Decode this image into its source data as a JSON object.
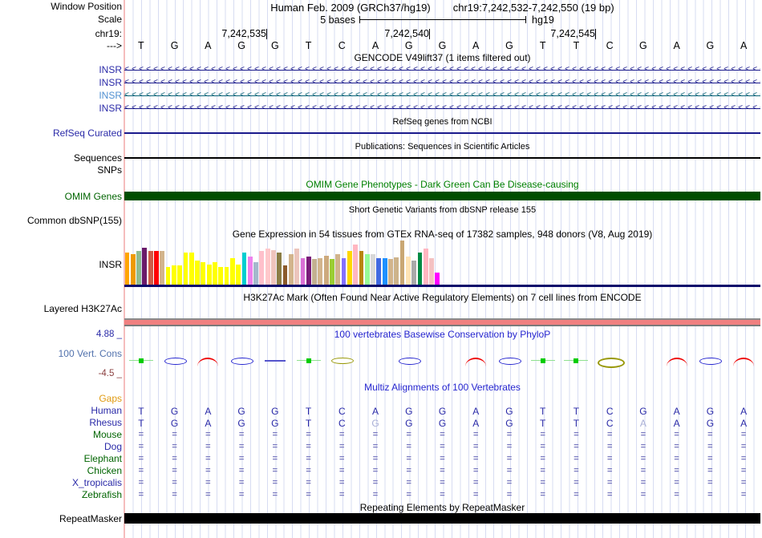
{
  "colors": {
    "navy": "#1a1a8c",
    "label_blue": "#2a2aa8",
    "title_blue": "#2525cf",
    "green_title": "#008000",
    "green_label": "#006400",
    "omim_bar": "#004d00",
    "salmon": "#f08080",
    "gray_edge": "#7a7a7a",
    "orange": "#e09a10",
    "eq": "#7b7bc0",
    "dim_letter": "#a9afd6",
    "teal_line": "#0c6478",
    "light_blue_label": "#4f8fd1",
    "maroon": "#8b4040",
    "cons_label": "#5272ad",
    "black": "#000000"
  },
  "header": {
    "window_position_label": "Window Position",
    "assembly": "Human Feb. 2009 (GRCh37/hg19)",
    "position": "chr19:7,242,532-7,242,550 (19 bp)",
    "scale_label": "Scale",
    "scale_bases": "5 bases",
    "scale_genome": "hg19",
    "chrom_label": "chr19:",
    "ruler_ticks": [
      "7,242,535",
      "7,242,540",
      "7,242,545"
    ],
    "strand_arrow": "--->",
    "sequence": [
      "T",
      "G",
      "A",
      "G",
      "G",
      "T",
      "C",
      "A",
      "G",
      "G",
      "A",
      "G",
      "T",
      "T",
      "C",
      "G",
      "A",
      "G",
      "A"
    ]
  },
  "tracks": {
    "gencode": {
      "title": "GENCODE V49lift37 (1 items filtered out)",
      "items": [
        {
          "label": "INSR",
          "label_color": "#2a2aa8",
          "color": "#1a1a8c",
          "strand": "<"
        },
        {
          "label": "INSR",
          "label_color": "#2a2aa8",
          "color": "#1a1a8c",
          "strand": "<"
        },
        {
          "label": "INSR",
          "label_color": "#4f8fd1",
          "color": "#0c6478",
          "strand": "<"
        },
        {
          "label": "INSR",
          "label_color": "#2a2aa8",
          "color": "#1a1a8c",
          "strand": "<"
        }
      ]
    },
    "refseq": {
      "title": "RefSeq genes from NCBI",
      "label": "RefSeq Curated"
    },
    "publications": {
      "title": "Publications: Sequences in Scientific Articles",
      "label": "Sequences"
    },
    "snps": {
      "label": "SNPs"
    },
    "omim": {
      "title": "OMIM Gene Phenotypes - Dark Green Can Be Disease-causing",
      "label": "OMIM Genes"
    },
    "dbsnp": {
      "title": "Short Genetic Variants from dbSNP release 155",
      "label": "Common dbSNP(155)"
    },
    "gtex": {
      "title": "Gene Expression in 54 tissues from GTEx RNA-seq of 17382 samples, 948 donors (V8, Aug 2019)",
      "label": "INSR"
    },
    "h3k27ac": {
      "title": "H3K27Ac Mark (Often Found Near Active Regulatory Elements) on 7 cell lines from ENCODE",
      "label": "Layered H3K27Ac"
    },
    "phylop": {
      "title": "100 vertebrates Basewise Conservation by PhyloP",
      "label": "100 Vert. Cons",
      "top_value": "4.88 _",
      "bottom_value": "-4.5 _",
      "glyphs": [
        "green",
        "lens",
        "hump",
        "lens",
        "line",
        "green",
        "olive",
        "none",
        "lens",
        "none",
        "hump",
        "lens",
        "green",
        "green",
        "olivebig",
        "none",
        "hump",
        "lens",
        "hump"
      ]
    },
    "multiz": {
      "title": "Multiz Alignments of 100 Vertebrates",
      "rows": [
        {
          "label": "Gaps",
          "label_color": "#e09a10",
          "type": "empty"
        },
        {
          "label": "Human",
          "label_color": "#2a2aa8",
          "type": "seq",
          "cells": [
            "T",
            "G",
            "A",
            "G",
            "G",
            "T",
            "C",
            "A",
            "G",
            "G",
            "A",
            "G",
            "T",
            "T",
            "C",
            "G",
            "A",
            "G",
            "A"
          ],
          "dim": []
        },
        {
          "label": "Rhesus",
          "label_color": "#2a2aa8",
          "type": "seq",
          "cells": [
            "T",
            "G",
            "A",
            "G",
            "G",
            "T",
            "C",
            "G",
            "G",
            "G",
            "A",
            "G",
            "T",
            "T",
            "C",
            "A",
            "A",
            "G",
            "A"
          ],
          "dim": [
            8,
            16
          ]
        },
        {
          "label": "Mouse",
          "label_color": "#006400",
          "type": "eq"
        },
        {
          "label": "Dog",
          "label_color": "#2a2aa8",
          "type": "eq"
        },
        {
          "label": "Elephant",
          "label_color": "#006400",
          "type": "eq"
        },
        {
          "label": "Chicken",
          "label_color": "#006400",
          "type": "eq"
        },
        {
          "label": "X_tropicalis",
          "label_color": "#2a2aa8",
          "type": "eq"
        },
        {
          "label": "Zebrafish",
          "label_color": "#006400",
          "type": "eq"
        }
      ]
    },
    "repeatmasker": {
      "title": "Repeating Elements by RepeatMasker",
      "label": "RepeatMasker"
    }
  },
  "chart_data": {
    "type": "bar",
    "title": "Gene Expression in 54 tissues from GTEx RNA-seq of 17382 samples, 948 donors (V8, Aug 2019)",
    "gene": "INSR",
    "note": "54 unlabeled tissue bars, GTEx tissue colors; heights relative (max 55)",
    "ylim": [
      0,
      55
    ],
    "bars": [
      {
        "color": "#FFA500",
        "h": 40
      },
      {
        "color": "#EE9A00",
        "h": 38
      },
      {
        "color": "#8FBC8F",
        "h": 42
      },
      {
        "color": "#6A1B6A",
        "h": 46
      },
      {
        "color": "#CD5B45",
        "h": 42
      },
      {
        "color": "#FF0000",
        "h": 42
      },
      {
        "color": "#D2B48C",
        "h": 42
      },
      {
        "color": "#FFFF00",
        "h": 22
      },
      {
        "color": "#FFFF00",
        "h": 24
      },
      {
        "color": "#FFFF00",
        "h": 24
      },
      {
        "color": "#FFFF00",
        "h": 40
      },
      {
        "color": "#FFFF00",
        "h": 40
      },
      {
        "color": "#FFFF00",
        "h": 30
      },
      {
        "color": "#FFFF00",
        "h": 28
      },
      {
        "color": "#FFFF00",
        "h": 25
      },
      {
        "color": "#FFFF00",
        "h": 28
      },
      {
        "color": "#FFFF00",
        "h": 22
      },
      {
        "color": "#FFFF00",
        "h": 22
      },
      {
        "color": "#FFFF00",
        "h": 33
      },
      {
        "color": "#FFFF00",
        "h": 25
      },
      {
        "color": "#00CED1",
        "h": 40
      },
      {
        "color": "#EE82EE",
        "h": 35
      },
      {
        "color": "#A4B8CC",
        "h": 28
      },
      {
        "color": "#FFC0CB",
        "h": 42
      },
      {
        "color": "#FFC8CB",
        "h": 45
      },
      {
        "color": "#EFC5BD",
        "h": 43
      },
      {
        "color": "#8B7D45",
        "h": 40
      },
      {
        "color": "#8B5A2B",
        "h": 24
      },
      {
        "color": "#D2B48C",
        "h": 38
      },
      {
        "color": "#ECC5BC",
        "h": 45
      },
      {
        "color": "#DA70D6",
        "h": 33
      },
      {
        "color": "#7A1B7A",
        "h": 35
      },
      {
        "color": "#C3B091",
        "h": 32
      },
      {
        "color": "#D2B48C",
        "h": 33
      },
      {
        "color": "#CDAA7D",
        "h": 36
      },
      {
        "color": "#9ACD32",
        "h": 32
      },
      {
        "color": "#D2B48C",
        "h": 38
      },
      {
        "color": "#8470FF",
        "h": 33
      },
      {
        "color": "#FFD700",
        "h": 42
      },
      {
        "color": "#FFB6C1",
        "h": 50
      },
      {
        "color": "#B8860B",
        "h": 42
      },
      {
        "color": "#98FB98",
        "h": 38
      },
      {
        "color": "#D8D8D8",
        "h": 38
      },
      {
        "color": "#4169E1",
        "h": 33
      },
      {
        "color": "#1E90FF",
        "h": 33
      },
      {
        "color": "#D2B48C",
        "h": 32
      },
      {
        "color": "#CDB38B",
        "h": 34
      },
      {
        "color": "#C9A774",
        "h": 55
      },
      {
        "color": "#FFE4B5",
        "h": 35
      },
      {
        "color": "#A9A9A9",
        "h": 30
      },
      {
        "color": "#008B45",
        "h": 40
      },
      {
        "color": "#FFB6C1",
        "h": 45
      },
      {
        "color": "#F4C2C2",
        "h": 33
      },
      {
        "color": "#FF00FF",
        "h": 15
      }
    ]
  }
}
